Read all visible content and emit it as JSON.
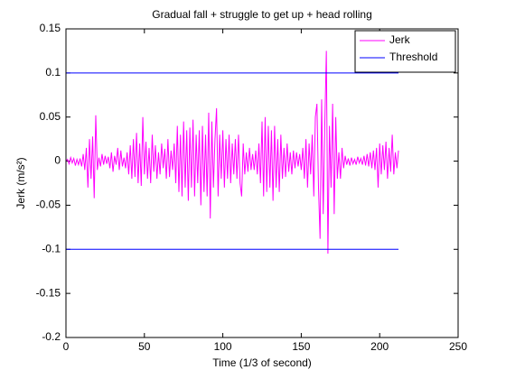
{
  "chart_data": {
    "type": "line",
    "title": "Gradual fall + struggle to get up + head rolling",
    "x_label": "Time (1/3 of second)",
    "y_label": "Jerk (m/s²)",
    "xlim": [
      0,
      250
    ],
    "xticks": [
      0,
      50,
      100,
      150,
      200,
      250
    ],
    "ylim": [
      -0.2,
      0.15
    ],
    "yticks": [
      -0.2,
      -0.15,
      -0.1,
      -0.05,
      0,
      0.05,
      0.1,
      0.15
    ],
    "legend": "top-right",
    "series": [
      {
        "name": "Jerk",
        "color": "#ff00ff",
        "x": [
          0,
          1,
          2,
          3,
          4,
          5,
          6,
          7,
          8,
          9,
          10,
          11,
          12,
          13,
          14,
          15,
          16,
          17,
          18,
          19,
          20,
          21,
          22,
          23,
          24,
          25,
          26,
          27,
          28,
          29,
          30,
          31,
          32,
          33,
          34,
          35,
          36,
          37,
          38,
          39,
          40,
          41,
          42,
          43,
          44,
          45,
          46,
          47,
          48,
          49,
          50,
          51,
          52,
          53,
          54,
          55,
          56,
          57,
          58,
          59,
          60,
          61,
          62,
          63,
          64,
          65,
          66,
          67,
          68,
          69,
          70,
          71,
          72,
          73,
          74,
          75,
          76,
          77,
          78,
          79,
          80,
          81,
          82,
          83,
          84,
          85,
          86,
          87,
          88,
          89,
          90,
          91,
          92,
          93,
          94,
          95,
          96,
          97,
          98,
          99,
          100,
          101,
          102,
          103,
          104,
          105,
          106,
          107,
          108,
          109,
          110,
          111,
          112,
          113,
          114,
          115,
          116,
          117,
          118,
          119,
          120,
          121,
          122,
          123,
          124,
          125,
          126,
          127,
          128,
          129,
          130,
          131,
          132,
          133,
          134,
          135,
          136,
          137,
          138,
          139,
          140,
          141,
          142,
          143,
          144,
          145,
          146,
          147,
          148,
          149,
          150,
          151,
          152,
          153,
          154,
          155,
          156,
          157,
          158,
          159,
          160,
          161,
          162,
          163,
          164,
          165,
          166,
          167,
          168,
          169,
          170,
          171,
          172,
          173,
          174,
          175,
          176,
          177,
          178,
          179,
          180,
          181,
          182,
          183,
          184,
          185,
          186,
          187,
          188,
          189,
          190,
          191,
          192,
          193,
          194,
          195,
          196,
          197,
          198,
          199,
          200,
          201,
          202,
          203,
          204,
          205,
          206,
          207,
          208,
          209,
          210,
          211,
          212
        ],
        "values": [
          0,
          0.002,
          -0.003,
          0.004,
          -0.002,
          0.003,
          -0.005,
          0.002,
          -0.004,
          0.003,
          -0.006,
          0.008,
          -0.01,
          0.015,
          -0.03,
          0.025,
          -0.02,
          0.028,
          -0.042,
          0.052,
          -0.01,
          0.004,
          -0.006,
          0.008,
          -0.004,
          0.006,
          -0.003,
          0.005,
          -0.008,
          0.01,
          -0.012,
          0.006,
          -0.004,
          0.015,
          -0.01,
          0.012,
          -0.006,
          0.004,
          -0.008,
          0.01,
          -0.015,
          0.018,
          -0.02,
          0.025,
          -0.018,
          0.032,
          -0.025,
          0.02,
          -0.028,
          0.05,
          -0.015,
          0.022,
          -0.02,
          0.015,
          -0.025,
          0.03,
          -0.012,
          0.018,
          -0.02,
          0.01,
          -0.015,
          0.02,
          -0.008,
          0.014,
          -0.02,
          0.025,
          -0.018,
          0.012,
          -0.01,
          0.02,
          -0.025,
          0.04,
          -0.035,
          0.03,
          -0.04,
          0.045,
          -0.03,
          0.035,
          -0.045,
          0.038,
          -0.03,
          0.047,
          -0.04,
          0.03,
          -0.025,
          0.035,
          -0.05,
          0.04,
          -0.035,
          0.03,
          -0.04,
          0.055,
          -0.065,
          0.045,
          -0.03,
          0.025,
          0.06,
          -0.04,
          0.03,
          -0.02,
          0.035,
          -0.03,
          0.025,
          -0.02,
          0.03,
          -0.025,
          0.02,
          -0.015,
          0.025,
          -0.02,
          0.03,
          -0.025,
          -0.04,
          0.02,
          -0.015,
          0.01,
          -0.012,
          0.015,
          -0.01,
          0.008,
          -0.01,
          0.012,
          -0.015,
          0.02,
          -0.025,
          0.045,
          -0.04,
          0.05,
          -0.035,
          0.04,
          -0.03,
          0.035,
          -0.045,
          0.04,
          -0.03,
          0.025,
          -0.035,
          0.03,
          -0.02,
          0.015,
          -0.018,
          0.02,
          -0.012,
          0.01,
          -0.015,
          0.012,
          -0.008,
          0.01,
          -0.006,
          0.008,
          -0.01,
          0.015,
          -0.02,
          0.025,
          -0.03,
          0.02,
          -0.015,
          0.03,
          -0.04,
          0.05,
          0.065,
          -0.03,
          -0.088,
          0.07,
          -0.06,
          0.04,
          0.125,
          -0.105,
          0.04,
          -0.03,
          0.065,
          -0.06,
          0.05,
          -0.02,
          0.01,
          -0.02,
          0.015,
          -0.008,
          0.006,
          -0.004,
          0.003,
          -0.005,
          0.004,
          -0.003,
          0.002,
          -0.004,
          0.005,
          -0.002,
          0.003,
          -0.004,
          0.006,
          -0.005,
          0.008,
          -0.006,
          0.01,
          -0.008,
          0.012,
          -0.01,
          0.015,
          -0.03,
          0.02,
          -0.015,
          0.018,
          -0.01,
          0.022,
          -0.02,
          0.015,
          -0.012,
          0.03,
          -0.015,
          0.01,
          -0.008,
          0.012
        ]
      },
      {
        "name": "Threshold",
        "color": "#0000ff",
        "x": [
          0,
          212,
          0,
          0,
          212
        ],
        "values": [
          0.1,
          0.1,
          null,
          -0.1,
          -0.1
        ]
      }
    ]
  }
}
